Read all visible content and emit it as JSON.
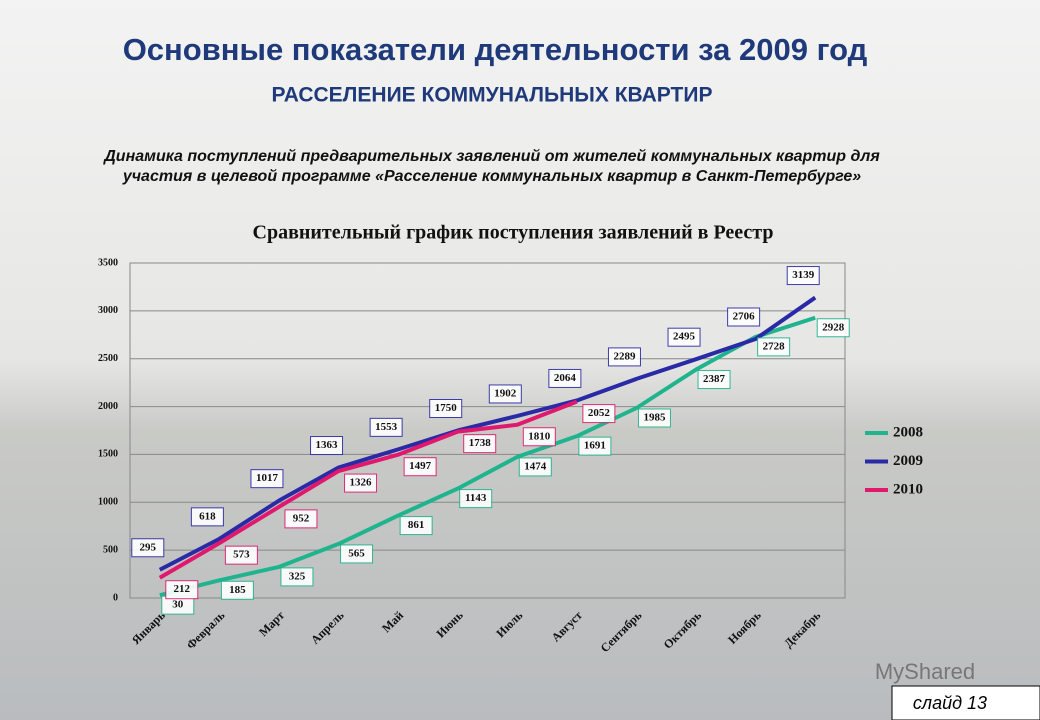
{
  "header": {
    "title": "Основные показатели деятельности за 2009 год",
    "subtitle": "РАССЕЛЕНИЕ КОММУНАЛЬНЫХ КВАРТИР",
    "description": [
      "Динамика поступлений предварительных заявлений от жителей коммунальных квартир для",
      "участия в целевой программе «Расселение коммунальных квартир в Санкт-Петербурге»"
    ]
  },
  "chart_data": {
    "type": "line",
    "title": "Сравнительный график поступления заявлений в Реестр",
    "categories": [
      "Январь",
      "Февраль",
      "Март",
      "Апрель",
      "Май",
      "Июнь",
      "Июль",
      "Август",
      "Сентябрь",
      "Октябрь",
      "Ноябрь",
      "Декабрь"
    ],
    "series": [
      {
        "name": "2008",
        "color": "#1fb38e",
        "values": [
          30,
          185,
          325,
          565,
          861,
          1143,
          1474,
          1691,
          1985,
          2387,
          2728,
          2928
        ]
      },
      {
        "name": "2009",
        "color": "#2a2aa6",
        "values": [
          295,
          618,
          1017,
          1363,
          1553,
          1750,
          1902,
          2064,
          2289,
          2495,
          2706,
          3139
        ]
      },
      {
        "name": "2010",
        "color": "#e0186e",
        "values": [
          212,
          573,
          952,
          1326,
          1497,
          1738,
          1810,
          2052,
          null,
          null,
          null,
          null
        ]
      }
    ],
    "ylim": [
      0,
      3500
    ],
    "yticks": [
      0,
      500,
      1000,
      1500,
      2000,
      2500,
      3000,
      3500
    ],
    "grid": true,
    "legend": "right"
  },
  "footer": {
    "slide": "слайд 13",
    "watermark": "MyShared"
  }
}
